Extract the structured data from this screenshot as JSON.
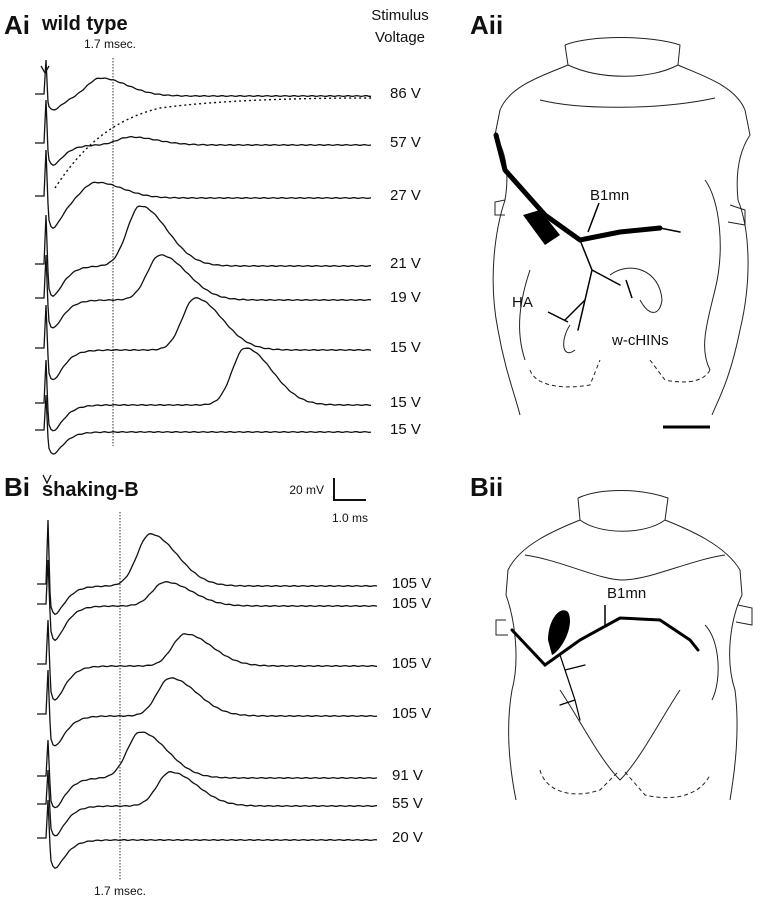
{
  "panel_ai": {
    "label": "Ai",
    "title": "wild type",
    "header": [
      "Stimulus",
      "Voltage"
    ],
    "time_marker": "1.7 msec.",
    "trace_labels": [
      "86 V",
      "57 V",
      "27 V",
      "21 V",
      "19 V",
      "15 V",
      "15 V",
      "15 V"
    ]
  },
  "panel_aii": {
    "label": "Aii",
    "annotations": [
      "B1mn",
      "HA",
      "w-cHINs"
    ]
  },
  "panel_bi": {
    "label": "Bi",
    "title": "shaking-B",
    "scale_bar": [
      "20 mV",
      "1.0 ms"
    ],
    "time_marker": "1.7 msec.",
    "trace_labels": [
      "105 V",
      "105 V",
      "105 V",
      "105 V",
      "91 V",
      "55 V",
      "20 V"
    ]
  },
  "panel_bii": {
    "label": "Bii",
    "annotations": [
      "B1mn"
    ]
  }
}
